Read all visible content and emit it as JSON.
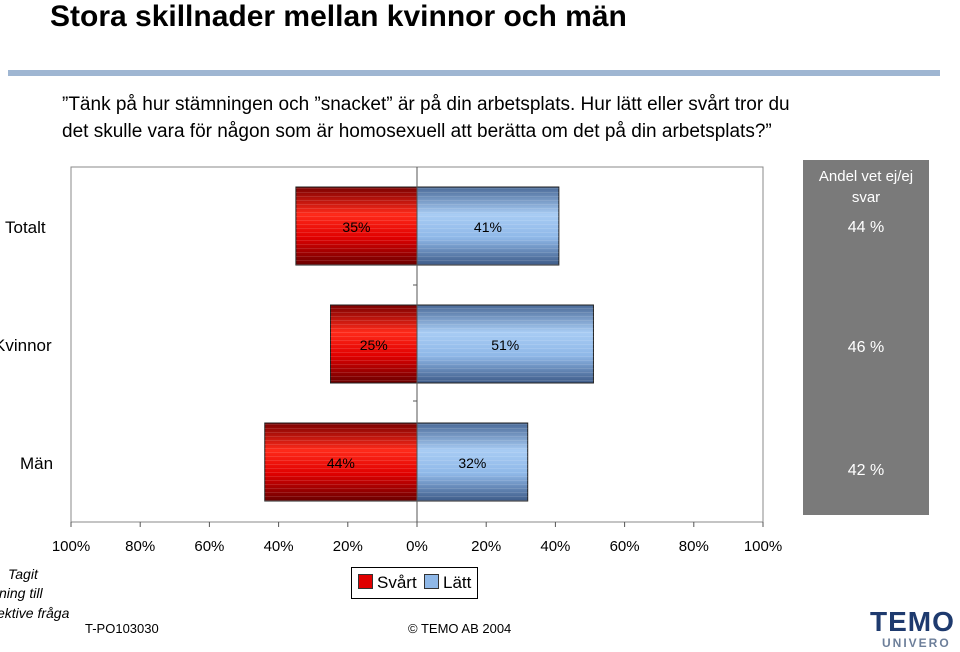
{
  "page": {
    "title": "Stora skillnader mellan kvinnor och män",
    "question_line1": "”Tänk på hur stämningen och ”snacket” är på din arbetsplats. Hur lätt eller svårt tror du",
    "question_line2": "det skulle vara för någon som är homosexuell att berätta om det på din arbetsplats?”",
    "side_header": "Andel vet ej/ej svar",
    "side_values": [
      "44 %",
      "46 %",
      "42 %"
    ],
    "note_lines": [
      "Tagit",
      "ning till",
      "ektive fråga"
    ],
    "footer_code": "T-PO103030",
    "footer_copyright": "© TEMO AB 2004",
    "logo_main": "TEMO",
    "logo_sub": "UNIVERO"
  },
  "colors": {
    "svart": "#e00000",
    "latt": "#8fb8e8",
    "side_bg": "#7a7a7a",
    "accent_rule": "#9fb6d2"
  },
  "chart_data": {
    "type": "bar",
    "orientation": "horizontal-diverging",
    "categories": [
      "Totalt",
      "Kvinnor",
      "Män"
    ],
    "series": [
      {
        "name": "Svårt",
        "values": [
          35,
          25,
          44
        ],
        "labels": [
          "35%",
          "25%",
          "44%"
        ]
      },
      {
        "name": "Lätt",
        "values": [
          41,
          51,
          32
        ],
        "labels": [
          "41%",
          "51%",
          "32%"
        ]
      }
    ],
    "xlim": [
      -100,
      100
    ],
    "tick_labels": [
      "100%",
      "80%",
      "60%",
      "40%",
      "20%",
      "0%",
      "20%",
      "40%",
      "60%",
      "80%",
      "100%"
    ],
    "legend": [
      "Svårt",
      "Lätt"
    ],
    "legend_position": "bottom-center"
  }
}
